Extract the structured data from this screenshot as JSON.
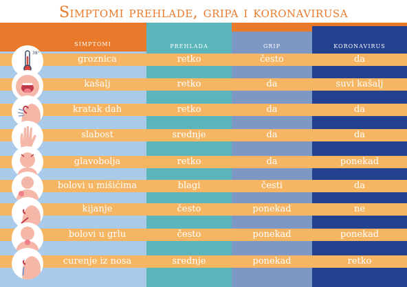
{
  "title": "Simptomi prehlade, gripa i koronavirusa",
  "headers": [
    "simptomi",
    "prehlada",
    "grip",
    "koronavirus"
  ],
  "colors": {
    "title": "#e97a2b",
    "header_bar": "#e97a2b",
    "stripe": "#f6b562",
    "background": "#a9cbe9",
    "prehlada_column": "#5ab6bb",
    "grip_column": "#7e98c6",
    "koronavirus_column": "#24418f"
  },
  "icons": [
    "thermometer-icon",
    "cough-icon",
    "shortness-of-breath-icon",
    "weakness-hand-icon",
    "headache-icon",
    "muscle-pain-icon",
    "sneezing-icon",
    "sore-throat-icon",
    "runny-nose-icon"
  ],
  "rows": [
    {
      "symptom": "groznica",
      "prehlada": "retko",
      "grip": "često",
      "koronavirus": "da"
    },
    {
      "symptom": "kašalj",
      "prehlada": "retko",
      "grip": "da",
      "koronavirus": "suvi kašalj"
    },
    {
      "symptom": "kratak dah",
      "prehlada": "retko",
      "grip": "da",
      "koronavirus": "da"
    },
    {
      "symptom": "slabost",
      "prehlada": "srednje",
      "grip": "da",
      "koronavirus": "da"
    },
    {
      "symptom": "glavobolja",
      "prehlada": "retko",
      "grip": "da",
      "koronavirus": "ponekad"
    },
    {
      "symptom": "bolovi u mišićima",
      "prehlada": "blagi",
      "grip": "česti",
      "koronavirus": "da"
    },
    {
      "symptom": "kijanje",
      "prehlada": "često",
      "grip": "ponekad",
      "koronavirus": "ne"
    },
    {
      "symptom": "bolovi u grlu",
      "prehlada": "često",
      "grip": "ponekad",
      "koronavirus": "ponekad"
    },
    {
      "symptom": "curenje iz nosa",
      "prehlada": "srednje",
      "grip": "ponekad",
      "koronavirus": "retko"
    }
  ]
}
